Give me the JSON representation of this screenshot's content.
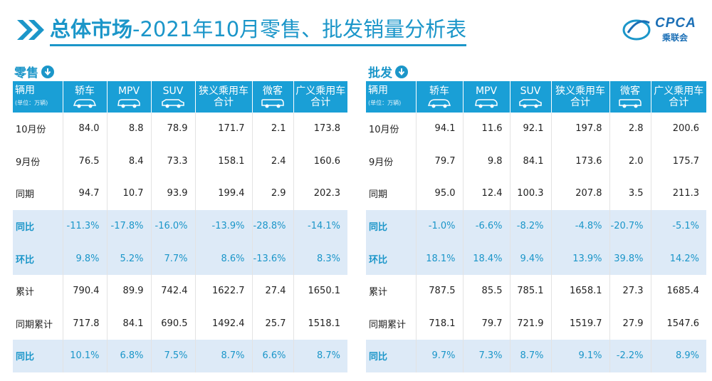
{
  "header": {
    "title_bold": "总体市场",
    "title_rest": "-2021年10月零售、批发销量分析表",
    "logo_text": "CPCA",
    "logo_sub": "乘联会"
  },
  "colors": {
    "accent": "#1b96c9",
    "header_bg": "#1a9fd6",
    "highlight_row": "#ddeaf7"
  },
  "sections": [
    {
      "label": "零售",
      "icon": "down-arrow-circle-icon",
      "columns": [
        "辆用",
        "轿车",
        "MPV",
        "SUV",
        "狭义乘用车合计",
        "微客",
        "广义乘用车合计"
      ],
      "unit_note": "(单位：万辆)",
      "rows": [
        {
          "label": "10月份",
          "cells": [
            "84.0",
            "8.8",
            "78.9",
            "171.7",
            "2.1",
            "173.8"
          ],
          "style": "white"
        },
        {
          "label": "9月份",
          "cells": [
            "76.5",
            "8.4",
            "73.3",
            "158.1",
            "2.4",
            "160.6"
          ],
          "style": "white"
        },
        {
          "label": "同期",
          "cells": [
            "94.7",
            "10.7",
            "93.9",
            "199.4",
            "2.9",
            "202.3"
          ],
          "style": "white"
        },
        {
          "label": "同比",
          "cells": [
            "-11.3%",
            "-17.8%",
            "-16.0%",
            "-13.9%",
            "-28.8%",
            "-14.1%"
          ],
          "style": "blue"
        },
        {
          "label": "环比",
          "cells": [
            "9.8%",
            "5.2%",
            "7.7%",
            "8.6%",
            "-13.6%",
            "8.3%"
          ],
          "style": "blue"
        },
        {
          "label": "累计",
          "cells": [
            "790.4",
            "89.9",
            "742.4",
            "1622.7",
            "27.4",
            "1650.1"
          ],
          "style": "white"
        },
        {
          "label": "同期累计",
          "cells": [
            "717.8",
            "84.1",
            "690.5",
            "1492.4",
            "25.7",
            "1518.1"
          ],
          "style": "white"
        },
        {
          "label": "同比",
          "cells": [
            "10.1%",
            "6.8%",
            "7.5%",
            "8.7%",
            "6.6%",
            "8.7%"
          ],
          "style": "blue"
        }
      ]
    },
    {
      "label": "批发",
      "icon": "down-arrow-circle-icon",
      "columns": [
        "辆用",
        "轿车",
        "MPV",
        "SUV",
        "狭义乘用车合计",
        "微客",
        "广义乘用车合计"
      ],
      "unit_note": "(单位：万辆)",
      "rows": [
        {
          "label": "10月份",
          "cells": [
            "94.1",
            "11.6",
            "92.1",
            "197.8",
            "2.8",
            "200.6"
          ],
          "style": "white"
        },
        {
          "label": "9月份",
          "cells": [
            "79.7",
            "9.8",
            "84.1",
            "173.6",
            "2.0",
            "175.7"
          ],
          "style": "white"
        },
        {
          "label": "同期",
          "cells": [
            "95.0",
            "12.4",
            "100.3",
            "207.8",
            "3.5",
            "211.3"
          ],
          "style": "white"
        },
        {
          "label": "同比",
          "cells": [
            "-1.0%",
            "-6.6%",
            "-8.2%",
            "-4.8%",
            "-20.7%",
            "-5.1%"
          ],
          "style": "blue"
        },
        {
          "label": "环比",
          "cells": [
            "18.1%",
            "18.4%",
            "9.4%",
            "13.9%",
            "39.8%",
            "14.2%"
          ],
          "style": "blue"
        },
        {
          "label": "累计",
          "cells": [
            "787.5",
            "85.5",
            "785.1",
            "1658.1",
            "27.3",
            "1685.4"
          ],
          "style": "white"
        },
        {
          "label": "同期累计",
          "cells": [
            "718.1",
            "79.7",
            "721.9",
            "1519.7",
            "27.9",
            "1547.6"
          ],
          "style": "white"
        },
        {
          "label": "同比",
          "cells": [
            "9.7%",
            "7.3%",
            "8.7%",
            "9.1%",
            "-2.2%",
            "8.9%"
          ],
          "style": "blue"
        }
      ]
    }
  ]
}
